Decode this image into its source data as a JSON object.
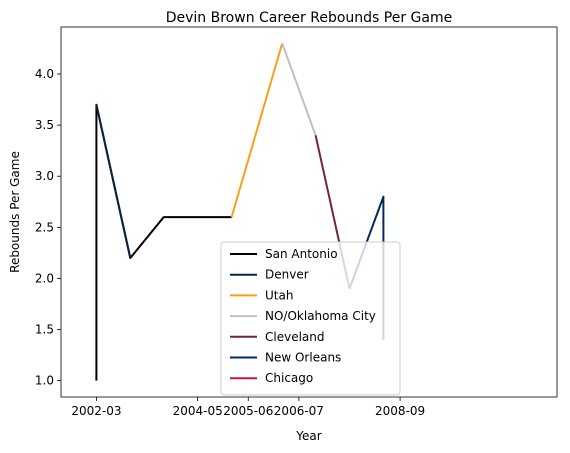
{
  "chart_data": {
    "type": "line",
    "title": "Devin Brown Career Rebounds Per Game",
    "xlabel": "Year",
    "ylabel": "Rebounds Per Game",
    "xlim": [
      2001.3,
      2011.1
    ],
    "ylim": [
      0.84,
      4.46
    ],
    "x_ticks": [
      {
        "label": "2002-03",
        "x": 2002
      },
      {
        "label": "2004-05",
        "x": 2004
      },
      {
        "label": "2005-06",
        "x": 2005
      },
      {
        "label": "2006-07",
        "x": 2006
      },
      {
        "label": "2008-09",
        "x": 2008
      }
    ],
    "y_ticks": [
      1.0,
      1.5,
      2.0,
      2.5,
      3.0,
      3.5,
      4.0
    ],
    "legend_position": "lower-center",
    "series": [
      {
        "name": "San Antonio",
        "color": "#000000",
        "points": [
          [
            2002,
            1.0
          ],
          [
            2002,
            3.7
          ],
          [
            2002.67,
            2.2
          ],
          [
            2003.33,
            2.6
          ],
          [
            2004,
            2.6
          ],
          [
            2004.67,
            2.6
          ]
        ]
      },
      {
        "name": "Denver",
        "color": "#0e2240",
        "points": [
          [
            2002,
            3.7
          ],
          [
            2002.67,
            2.2
          ]
        ]
      },
      {
        "name": "Utah",
        "color": "#f9a01b",
        "points": [
          [
            2004.67,
            2.6
          ],
          [
            2005.67,
            4.3
          ]
        ]
      },
      {
        "name": "NO/Oklahoma City",
        "color": "#bec0c2",
        "points": [
          [
            2005.67,
            4.3
          ],
          [
            2006.33,
            3.4
          ]
        ]
      },
      {
        "name": "Cleveland",
        "color": "#6f263d",
        "points": [
          [
            2006.33,
            3.4
          ],
          [
            2007,
            1.9
          ]
        ]
      },
      {
        "name": "New Orleans",
        "color": "#002b5c",
        "points": [
          [
            2007,
            1.9
          ],
          [
            2007.67,
            2.8
          ],
          [
            2007.67,
            1.4
          ]
        ]
      },
      {
        "name": "Chicago",
        "color": "#ce1141",
        "points": []
      }
    ]
  }
}
